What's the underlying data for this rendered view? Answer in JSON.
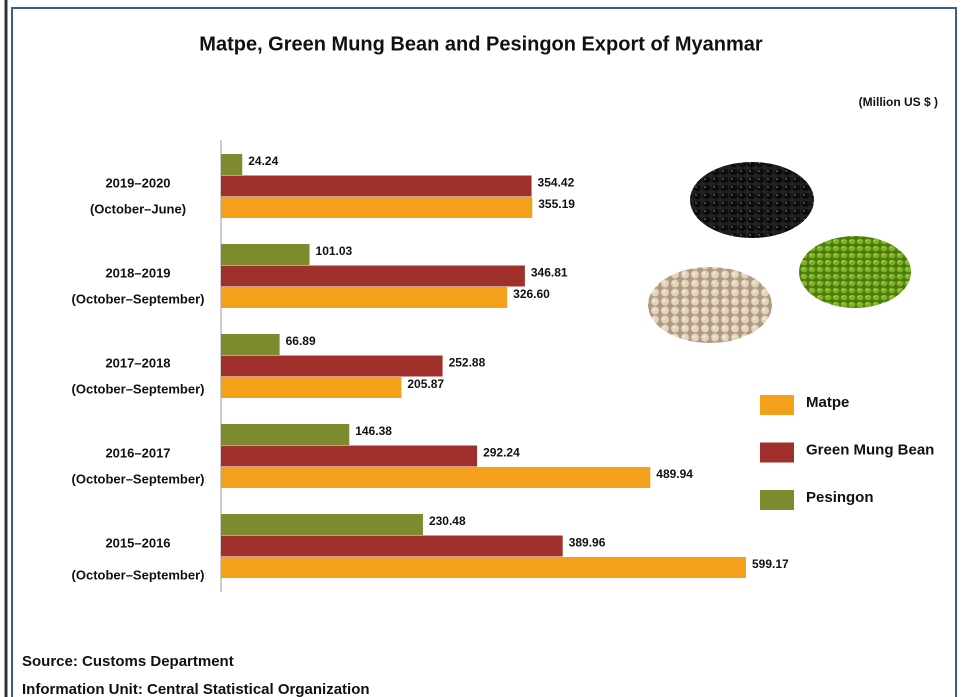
{
  "chart_data": {
    "type": "bar",
    "orientation": "horizontal",
    "title": "Matpe, Green Mung Bean and Pesingon Export of Myanmar",
    "subtitle": "(Million  US $ )",
    "categories": [
      [
        "2019–2020",
        "(October–June)"
      ],
      [
        "2018–2019",
        "(October–September)"
      ],
      [
        "2017–2018",
        "(October–September)"
      ],
      [
        "2016–2017",
        "(October–September)"
      ],
      [
        "2015–2016",
        "(October–September)"
      ]
    ],
    "series": [
      {
        "name": "Matpe",
        "color": "#f5a01a",
        "values": [
          355.19,
          326.6,
          205.87,
          489.94,
          599.17
        ],
        "value_labels": [
          "355.19",
          "326.60",
          "205.87",
          "489.94",
          "599.17"
        ]
      },
      {
        "name": "Green Mung Bean",
        "color": "#a0302b",
        "values": [
          354.42,
          346.81,
          252.88,
          292.24,
          389.96
        ],
        "value_labels": [
          "354.42",
          "346.81",
          "252.88",
          "292.24",
          "389.96"
        ]
      },
      {
        "name": "Pesingon",
        "color": "#7d8a2e",
        "values": [
          24.24,
          101.03,
          66.89,
          146.38,
          230.48
        ],
        "value_labels": [
          "24.24",
          "101.03",
          "66.89",
          "146.38",
          "230.48"
        ]
      }
    ],
    "source": "Source: Customs Department",
    "info": "Information Unit:  Central Statistical Organization"
  }
}
